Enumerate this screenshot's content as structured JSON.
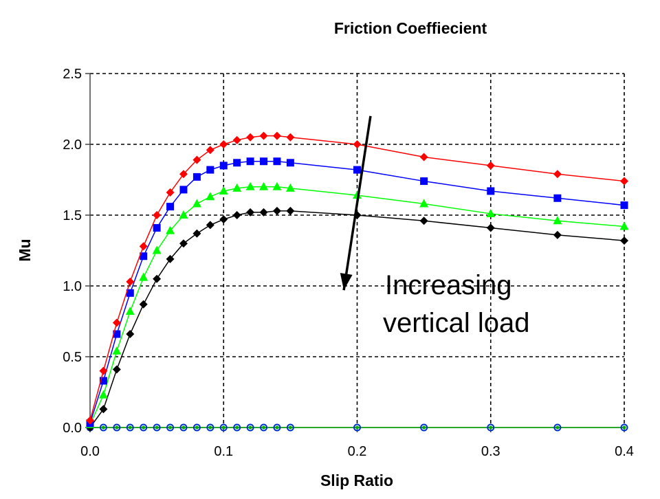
{
  "chart_data": {
    "type": "line",
    "title": "Friction Coeffiecient",
    "xlabel": "Slip Ratio",
    "ylabel": "Mu",
    "xlim": [
      0,
      0.4
    ],
    "ylim": [
      0,
      2.5
    ],
    "x_ticks": [
      "0.0",
      "0.1",
      "0.2",
      "0.3",
      "0.4"
    ],
    "y_ticks": [
      "0.0",
      "0.5",
      "1.0",
      "1.5",
      "2.0",
      "2.5"
    ],
    "grid": "dashed",
    "x": [
      0,
      0.01,
      0.02,
      0.03,
      0.04,
      0.05,
      0.06,
      0.07,
      0.08,
      0.09,
      0.1,
      0.11,
      0.12,
      0.13,
      0.14,
      0.15,
      0.2,
      0.25,
      0.3,
      0.35,
      0.4
    ],
    "series": [
      {
        "color": "#ff0000",
        "marker": "diamond",
        "values": [
          0.05,
          0.4,
          0.74,
          1.03,
          1.28,
          1.5,
          1.66,
          1.79,
          1.89,
          1.96,
          2.0,
          2.03,
          2.05,
          2.06,
          2.06,
          2.05,
          2.0,
          1.91,
          1.85,
          1.79,
          1.74
        ]
      },
      {
        "color": "#0000ff",
        "marker": "square",
        "values": [
          0.03,
          0.33,
          0.66,
          0.95,
          1.21,
          1.41,
          1.56,
          1.68,
          1.77,
          1.82,
          1.85,
          1.87,
          1.88,
          1.88,
          1.88,
          1.87,
          1.82,
          1.74,
          1.67,
          1.62,
          1.57
        ]
      },
      {
        "color": "#00ff00",
        "marker": "triangle",
        "values": [
          0.02,
          0.23,
          0.54,
          0.82,
          1.06,
          1.25,
          1.39,
          1.5,
          1.58,
          1.63,
          1.67,
          1.69,
          1.7,
          1.7,
          1.7,
          1.69,
          1.64,
          1.58,
          1.51,
          1.46,
          1.42
        ]
      },
      {
        "color": "#000000",
        "marker": "diamond",
        "values": [
          0.0,
          0.13,
          0.41,
          0.66,
          0.87,
          1.05,
          1.19,
          1.3,
          1.37,
          1.43,
          1.47,
          1.5,
          1.52,
          1.52,
          1.53,
          1.53,
          1.5,
          1.46,
          1.41,
          1.36,
          1.32
        ]
      },
      {
        "color": "#00aa00",
        "marker": "circle",
        "values": [
          0,
          0,
          0,
          0,
          0,
          0,
          0,
          0,
          0,
          0,
          0,
          0,
          0,
          0,
          0,
          0,
          0,
          0,
          0,
          0,
          0
        ]
      }
    ],
    "annotation": {
      "lines": [
        "Increasing",
        "vertical load"
      ],
      "arrow": {
        "from": [
          0.21,
          2.2
        ],
        "to": [
          0.19,
          0.97
        ]
      }
    }
  }
}
